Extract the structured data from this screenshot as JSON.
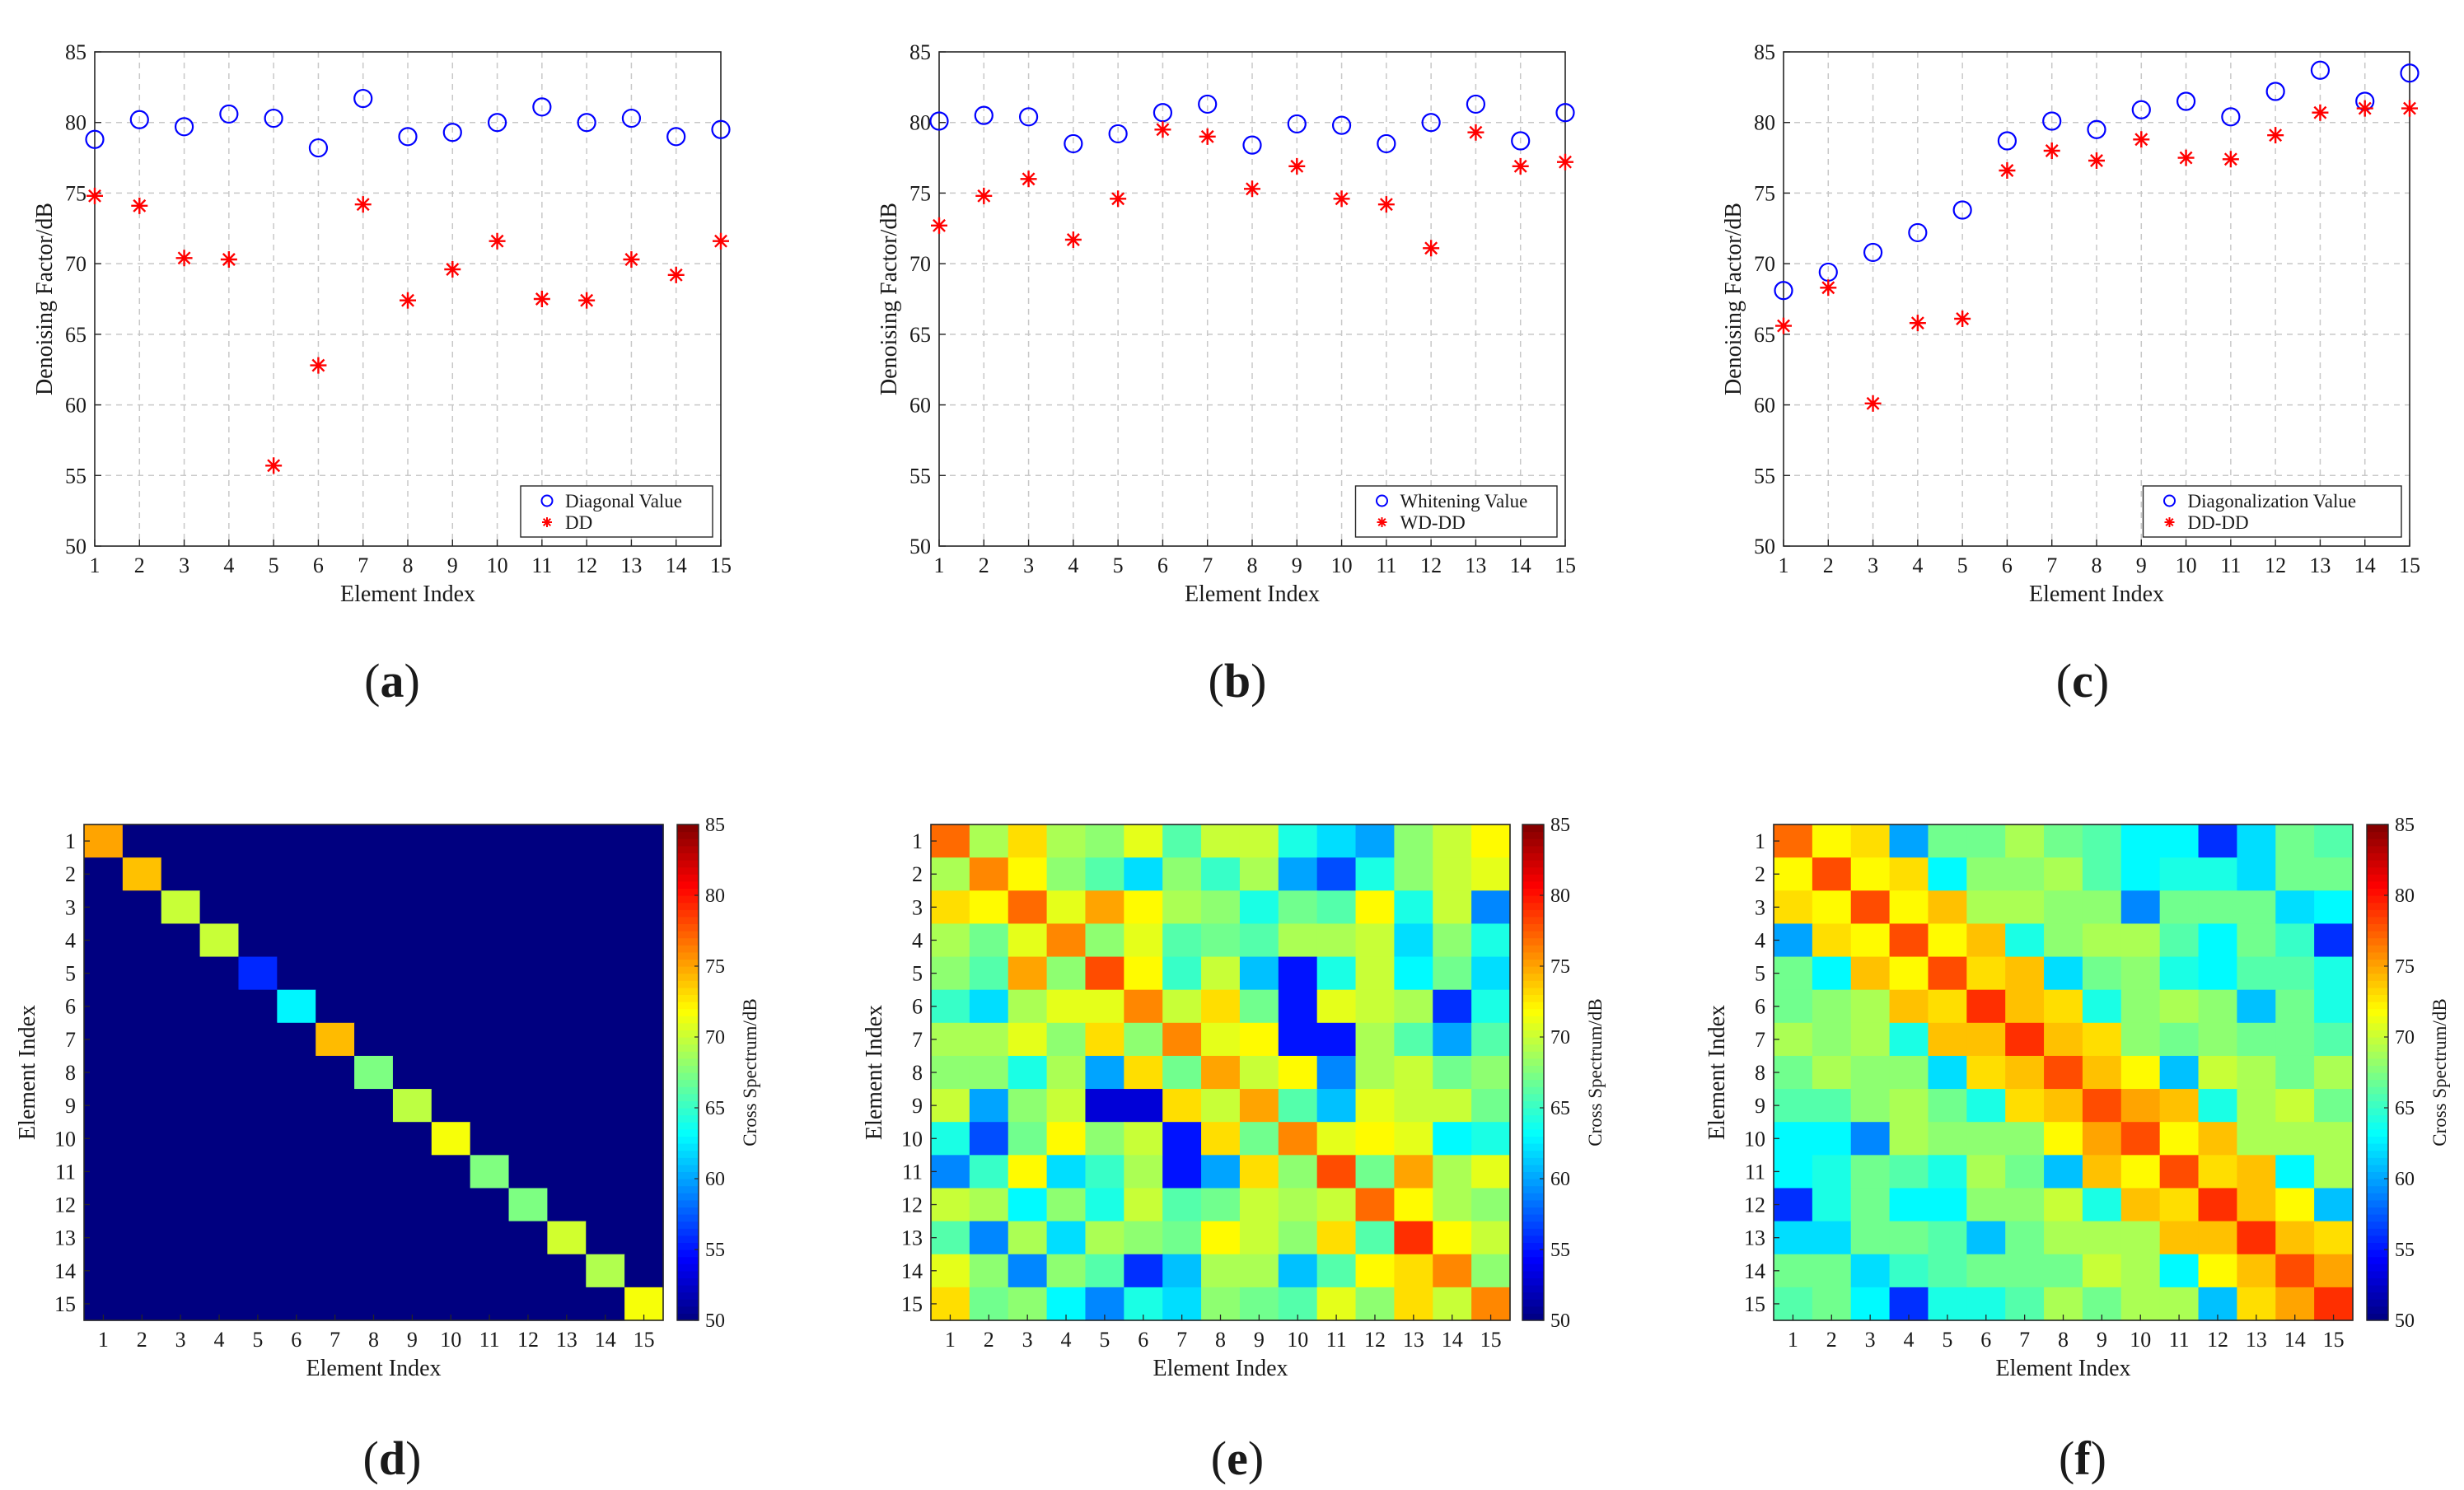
{
  "figure": {
    "panels": [
      {
        "prefix": "(",
        "letter": "a",
        "suffix": ")"
      },
      {
        "prefix": "(",
        "letter": "b",
        "suffix": ")"
      },
      {
        "prefix": "(",
        "letter": "c",
        "suffix": ")"
      },
      {
        "prefix": "(",
        "letter": "d",
        "suffix": ")"
      },
      {
        "prefix": "(",
        "letter": "e",
        "suffix": ")"
      },
      {
        "prefix": "(",
        "letter": "f",
        "suffix": ")"
      }
    ]
  },
  "chart_data": [
    {
      "id": "a",
      "type": "scatter",
      "xlabel": "Element Index",
      "ylabel": "Denoising Factor/dB",
      "xlim": [
        1,
        15
      ],
      "ylim": [
        50,
        85
      ],
      "xticks": [
        1,
        2,
        3,
        4,
        5,
        6,
        7,
        8,
        9,
        10,
        11,
        12,
        13,
        14,
        15
      ],
      "yticks": [
        50,
        55,
        60,
        65,
        70,
        75,
        80,
        85
      ],
      "grid": true,
      "legend_position": "bottom-right",
      "x": [
        1,
        2,
        3,
        4,
        5,
        6,
        7,
        8,
        9,
        10,
        11,
        12,
        13,
        14,
        15
      ],
      "series": [
        {
          "name": "Diagonal Value",
          "marker": "circle",
          "color": "#0000ff",
          "values": [
            78.8,
            80.2,
            79.7,
            80.6,
            80.3,
            78.2,
            81.7,
            79.0,
            79.3,
            80.0,
            81.1,
            80.0,
            80.3,
            79.0,
            79.5
          ]
        },
        {
          "name": "DD",
          "marker": "asterisk",
          "color": "#ff0000",
          "values": [
            74.8,
            74.1,
            70.4,
            70.3,
            55.7,
            62.8,
            74.2,
            67.4,
            69.6,
            71.6,
            67.5,
            67.4,
            70.3,
            69.2,
            71.6
          ]
        }
      ]
    },
    {
      "id": "b",
      "type": "scatter",
      "xlabel": "Element Index",
      "ylabel": "Denoising Factor/dB",
      "xlim": [
        1,
        15
      ],
      "ylim": [
        50,
        85
      ],
      "xticks": [
        1,
        2,
        3,
        4,
        5,
        6,
        7,
        8,
        9,
        10,
        11,
        12,
        13,
        14,
        15
      ],
      "yticks": [
        50,
        55,
        60,
        65,
        70,
        75,
        80,
        85
      ],
      "grid": true,
      "legend_position": "bottom-right",
      "x": [
        1,
        2,
        3,
        4,
        5,
        6,
        7,
        8,
        9,
        10,
        11,
        12,
        13,
        14,
        15
      ],
      "series": [
        {
          "name": "Whitening Value",
          "marker": "circle",
          "color": "#0000ff",
          "values": [
            80.1,
            80.5,
            80.4,
            78.5,
            79.2,
            80.7,
            81.3,
            78.4,
            79.9,
            79.8,
            78.5,
            80.0,
            81.3,
            78.7,
            80.7
          ]
        },
        {
          "name": "WD-DD",
          "marker": "asterisk",
          "color": "#ff0000",
          "values": [
            72.7,
            74.8,
            76.0,
            71.7,
            74.6,
            79.5,
            79.0,
            75.3,
            76.9,
            74.6,
            74.2,
            71.1,
            79.3,
            76.9,
            77.2
          ]
        }
      ]
    },
    {
      "id": "c",
      "type": "scatter",
      "xlabel": "Element Index",
      "ylabel": "Denoising Factor/dB",
      "xlim": [
        1,
        15
      ],
      "ylim": [
        50,
        85
      ],
      "xticks": [
        1,
        2,
        3,
        4,
        5,
        6,
        7,
        8,
        9,
        10,
        11,
        12,
        13,
        14,
        15
      ],
      "yticks": [
        50,
        55,
        60,
        65,
        70,
        75,
        80,
        85
      ],
      "grid": true,
      "legend_position": "bottom-right",
      "x": [
        1,
        2,
        3,
        4,
        5,
        6,
        7,
        8,
        9,
        10,
        11,
        12,
        13,
        14,
        15
      ],
      "series": [
        {
          "name": "Diagonalization Value",
          "marker": "circle",
          "color": "#0000ff",
          "values": [
            68.1,
            69.4,
            70.8,
            72.2,
            73.8,
            78.7,
            80.1,
            79.5,
            80.9,
            81.5,
            80.4,
            82.2,
            83.7,
            81.5,
            83.5
          ]
        },
        {
          "name": "DD-DD",
          "marker": "asterisk",
          "color": "#ff0000",
          "values": [
            65.6,
            68.3,
            60.1,
            65.8,
            66.1,
            76.6,
            78.0,
            77.3,
            78.8,
            77.5,
            77.4,
            79.1,
            80.7,
            81.0,
            81.0
          ]
        }
      ]
    },
    {
      "id": "d",
      "type": "heatmap",
      "xlabel": "Element Index",
      "ylabel": "Element Index",
      "colorbar_label": "Cross Spectrum/dB",
      "clim": [
        50,
        85
      ],
      "colorbar_ticks": [
        50,
        55,
        60,
        65,
        70,
        75,
        80,
        85
      ],
      "xticks": [
        1,
        2,
        3,
        4,
        5,
        6,
        7,
        8,
        9,
        10,
        11,
        12,
        13,
        14,
        15
      ],
      "yticks": [
        1,
        2,
        3,
        4,
        5,
        6,
        7,
        8,
        9,
        10,
        11,
        12,
        13,
        14,
        15
      ],
      "matrix": [
        [
          75,
          50,
          50,
          50,
          50,
          50,
          50,
          50,
          50,
          50,
          50,
          50,
          50,
          50,
          50
        ],
        [
          50,
          74,
          50,
          50,
          50,
          50,
          50,
          50,
          50,
          50,
          50,
          50,
          50,
          50,
          50
        ],
        [
          50,
          50,
          70,
          50,
          50,
          50,
          50,
          50,
          50,
          50,
          50,
          50,
          50,
          50,
          50
        ],
        [
          50,
          50,
          50,
          70,
          50,
          50,
          50,
          50,
          50,
          50,
          50,
          50,
          50,
          50,
          50
        ],
        [
          50,
          50,
          50,
          50,
          55.7,
          50,
          50,
          50,
          50,
          50,
          50,
          50,
          50,
          50,
          50
        ],
        [
          50,
          50,
          50,
          50,
          50,
          62.8,
          50,
          50,
          50,
          50,
          50,
          50,
          50,
          50,
          50
        ],
        [
          50,
          50,
          50,
          50,
          50,
          50,
          74.2,
          50,
          50,
          50,
          50,
          50,
          50,
          50,
          50
        ],
        [
          50,
          50,
          50,
          50,
          50,
          50,
          50,
          67.4,
          50,
          50,
          50,
          50,
          50,
          50,
          50
        ],
        [
          50,
          50,
          50,
          50,
          50,
          50,
          50,
          50,
          69.6,
          50,
          50,
          50,
          50,
          50,
          50
        ],
        [
          50,
          50,
          50,
          50,
          50,
          50,
          50,
          50,
          50,
          71.6,
          50,
          50,
          50,
          50,
          50
        ],
        [
          50,
          50,
          50,
          50,
          50,
          50,
          50,
          50,
          50,
          50,
          67.5,
          50,
          50,
          50,
          50
        ],
        [
          50,
          50,
          50,
          50,
          50,
          50,
          50,
          50,
          50,
          50,
          50,
          67.4,
          50,
          50,
          50
        ],
        [
          50,
          50,
          50,
          50,
          50,
          50,
          50,
          50,
          50,
          50,
          50,
          50,
          70.3,
          50,
          50
        ],
        [
          50,
          50,
          50,
          50,
          50,
          50,
          50,
          50,
          50,
          50,
          50,
          50,
          50,
          69.2,
          50
        ],
        [
          50,
          50,
          50,
          50,
          50,
          50,
          50,
          50,
          50,
          50,
          50,
          50,
          50,
          50,
          71.6
        ]
      ]
    },
    {
      "id": "e",
      "type": "heatmap",
      "xlabel": "Element Index",
      "ylabel": "Element Index",
      "colorbar_label": "Cross Spectrum/dB",
      "clim": [
        50,
        85
      ],
      "colorbar_ticks": [
        50,
        55,
        60,
        65,
        70,
        75,
        80,
        85
      ],
      "xticks": [
        1,
        2,
        3,
        4,
        5,
        6,
        7,
        8,
        9,
        10,
        11,
        12,
        13,
        14,
        15
      ],
      "yticks": [
        1,
        2,
        3,
        4,
        5,
        6,
        7,
        8,
        9,
        10,
        11,
        12,
        13,
        14,
        15
      ],
      "matrix": [
        [
          77,
          69,
          73,
          69,
          68,
          71,
          66,
          70,
          70,
          64,
          62,
          60,
          68,
          70,
          72
        ],
        [
          69,
          76,
          72,
          68,
          66,
          62,
          68,
          65,
          69,
          60,
          57,
          64,
          68,
          70,
          71
        ],
        [
          73,
          72,
          77,
          71,
          75,
          72,
          69,
          68,
          64,
          67,
          66,
          72,
          64,
          70,
          59
        ],
        [
          69,
          67,
          71,
          76,
          68,
          71,
          66,
          67,
          66,
          69,
          69,
          70,
          62,
          68,
          64
        ],
        [
          68,
          66,
          75,
          68,
          78,
          72,
          65,
          70,
          61,
          55,
          64,
          70,
          63,
          67,
          62
        ],
        [
          65,
          62,
          69,
          71,
          71,
          76,
          70,
          73,
          67,
          55,
          71,
          70,
          69,
          56,
          64
        ],
        [
          69,
          69,
          71,
          68,
          73,
          68,
          76,
          71,
          72,
          55,
          55,
          69,
          66,
          60,
          66
        ],
        [
          68,
          68,
          64,
          69,
          60,
          73,
          67,
          75,
          70,
          72,
          59,
          69,
          70,
          67,
          68
        ],
        [
          70,
          60,
          68,
          70,
          53,
          53,
          73,
          70,
          75,
          66,
          61,
          71,
          70,
          70,
          67
        ],
        [
          64,
          57,
          67,
          72,
          68,
          70,
          55,
          73,
          67,
          76,
          71,
          72,
          71,
          63,
          64
        ],
        [
          59,
          65,
          72,
          62,
          65,
          69,
          55,
          60,
          73,
          68,
          78,
          67,
          75,
          69,
          71
        ],
        [
          70,
          69,
          63,
          68,
          64,
          70,
          66,
          67,
          70,
          69,
          70,
          77,
          72,
          69,
          68
        ],
        [
          66,
          59,
          69,
          62,
          69,
          68,
          67,
          72,
          70,
          68,
          73,
          66,
          79,
          72,
          70
        ],
        [
          71,
          68,
          59,
          68,
          66,
          56,
          61,
          69,
          69,
          61,
          66,
          72,
          73,
          76,
          68
        ],
        [
          73,
          67,
          68,
          63,
          59,
          64,
          62,
          68,
          67,
          66,
          71,
          68,
          73,
          70,
          76
        ]
      ]
    },
    {
      "id": "f",
      "type": "heatmap",
      "xlabel": "Element Index",
      "ylabel": "Element Index",
      "colorbar_label": "Cross Spectrum/dB",
      "clim": [
        50,
        85
      ],
      "colorbar_ticks": [
        50,
        55,
        60,
        65,
        70,
        75,
        80,
        85
      ],
      "xticks": [
        1,
        2,
        3,
        4,
        5,
        6,
        7,
        8,
        9,
        10,
        11,
        12,
        13,
        14,
        15
      ],
      "yticks": [
        1,
        2,
        3,
        4,
        5,
        6,
        7,
        8,
        9,
        10,
        11,
        12,
        13,
        14,
        15
      ],
      "matrix": [
        [
          77,
          72,
          73,
          60,
          67,
          67,
          69,
          67,
          66,
          63,
          63,
          56,
          62,
          67,
          66
        ],
        [
          72,
          78,
          72,
          73,
          63,
          68,
          68,
          69,
          66,
          63,
          64,
          64,
          62,
          67,
          67
        ],
        [
          73,
          72,
          78,
          72,
          74,
          69,
          69,
          68,
          68,
          59,
          67,
          67,
          67,
          62,
          63
        ],
        [
          60,
          73,
          72,
          78,
          72,
          74,
          64,
          68,
          69,
          69,
          66,
          63,
          67,
          65,
          56
        ],
        [
          67,
          63,
          74,
          72,
          78,
          73,
          74,
          62,
          67,
          68,
          64,
          63,
          66,
          66,
          64
        ],
        [
          67,
          68,
          69,
          74,
          73,
          79,
          74,
          73,
          64,
          68,
          69,
          68,
          61,
          67,
          64
        ],
        [
          69,
          68,
          69,
          64,
          74,
          74,
          79,
          74,
          73,
          68,
          67,
          68,
          67,
          67,
          66
        ],
        [
          67,
          69,
          68,
          68,
          62,
          73,
          74,
          78,
          74,
          72,
          61,
          70,
          69,
          67,
          69
        ],
        [
          66,
          66,
          68,
          69,
          67,
          64,
          73,
          74,
          78,
          75,
          74,
          64,
          69,
          70,
          67
        ],
        [
          63,
          63,
          59,
          69,
          68,
          68,
          68,
          72,
          75,
          78,
          72,
          74,
          69,
          69,
          69
        ],
        [
          63,
          64,
          67,
          66,
          64,
          69,
          67,
          61,
          74,
          72,
          78,
          73,
          74,
          63,
          69
        ],
        [
          56,
          64,
          67,
          63,
          63,
          68,
          68,
          70,
          64,
          74,
          73,
          79,
          74,
          72,
          61
        ],
        [
          62,
          62,
          67,
          67,
          66,
          61,
          67,
          69,
          69,
          69,
          74,
          74,
          79,
          74,
          73
        ],
        [
          67,
          67,
          62,
          65,
          66,
          67,
          67,
          67,
          70,
          69,
          63,
          72,
          74,
          78,
          75
        ],
        [
          66,
          67,
          63,
          56,
          64,
          64,
          66,
          69,
          67,
          69,
          69,
          61,
          73,
          75,
          79
        ]
      ]
    }
  ]
}
